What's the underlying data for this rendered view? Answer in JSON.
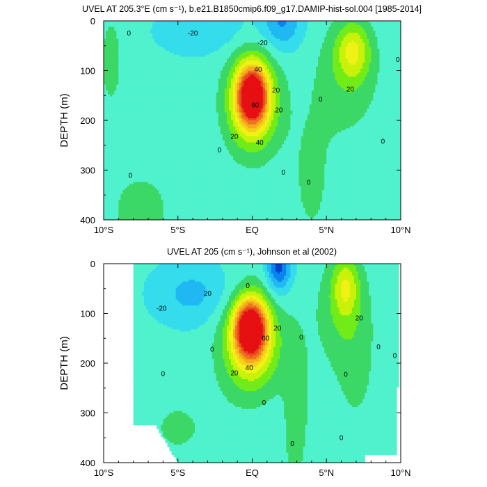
{
  "figure": {
    "title_top": "UVEL AT 205.3°E (cm s⁻¹), b.e21.B1850cmip6.f09_g17.DAMIP-hist-sol.004 [1985-2014]",
    "title_bottom": "UVEL AT 205 (cm s⁻¹), Johnson et al (2002)"
  },
  "colors": {
    "contour_levels": [
      -40,
      -30,
      -20,
      -10,
      0,
      10,
      20,
      30,
      40,
      50,
      60,
      70,
      80,
      90
    ],
    "palette": [
      "#0044cc",
      "#0a84f0",
      "#20b8f2",
      "#34dcec",
      "#4ff2cc",
      "#3cd867",
      "#72ec18",
      "#c8f20a",
      "#f0f216",
      "#f6d01a",
      "#f4aa1c",
      "#ee7420",
      "#e84a1e",
      "#e60f12",
      "#e60f12"
    ],
    "line": "#000000"
  },
  "chart_data": [
    {
      "type": "contour",
      "title": "UVEL AT 205.3°E (cm s⁻¹), b.e21.B1850cmip6.f09_g17.DAMIP-hist-sol.004 [1985-2014]",
      "xlabel": "",
      "ylabel": "DEPTH (m)",
      "xlim": [
        -10,
        10
      ],
      "ylim": [
        400,
        0
      ],
      "x_ticks": [
        -10,
        -5,
        0,
        5,
        10
      ],
      "x_tick_labels": [
        "10°S",
        "5°S",
        "EQ",
        "5°N",
        "10°N"
      ],
      "y_ticks": [
        0,
        100,
        200,
        300,
        400
      ],
      "y_tick_labels": [
        "0",
        "100",
        "200",
        "300",
        "400"
      ],
      "grid": false,
      "features": [
        {
          "kind": "EUC core",
          "lat": 0.0,
          "depth": 150,
          "max_value": 90
        },
        {
          "kind": "NECC",
          "lat": 6.8,
          "depth": 60,
          "max_value": 35
        },
        {
          "kind": "SEC surface minimum",
          "lat": 2.0,
          "depth": 5,
          "min_value": -30
        },
        {
          "kind": "deep eastward",
          "lat": -7.5,
          "depth": 350,
          "max_value": 5
        }
      ],
      "contour_labels": [
        {
          "text": "0",
          "lat": -8.3,
          "depth": 25
        },
        {
          "text": "-20",
          "lat": -4.0,
          "depth": 25
        },
        {
          "text": "-20",
          "lat": 0.7,
          "depth": 45
        },
        {
          "text": "40",
          "lat": 0.4,
          "depth": 98
        },
        {
          "text": "20",
          "lat": 1.6,
          "depth": 140
        },
        {
          "text": "60",
          "lat": 0.2,
          "depth": 170
        },
        {
          "text": "20",
          "lat": 1.8,
          "depth": 180
        },
        {
          "text": "20",
          "lat": -1.2,
          "depth": 233
        },
        {
          "text": "40",
          "lat": 0.5,
          "depth": 245
        },
        {
          "text": "0",
          "lat": -2.2,
          "depth": 260
        },
        {
          "text": "0",
          "lat": 2.1,
          "depth": 305
        },
        {
          "text": "20",
          "lat": 6.6,
          "depth": 138
        },
        {
          "text": "0",
          "lat": 4.6,
          "depth": 158
        },
        {
          "text": "0",
          "lat": 9.8,
          "depth": 78
        },
        {
          "text": "0",
          "lat": 8.8,
          "depth": 243
        },
        {
          "text": "0",
          "lat": 3.8,
          "depth": 325
        },
        {
          "text": "0",
          "lat": -8.2,
          "depth": 311
        }
      ]
    },
    {
      "type": "contour",
      "title": "UVEL AT 205 (cm s⁻¹), Johnson et al (2002)",
      "xlabel": "",
      "ylabel": "DEPTH (m)",
      "xlim": [
        -10,
        10
      ],
      "ylim": [
        400,
        0
      ],
      "x_ticks": [
        -10,
        -5,
        0,
        5,
        10
      ],
      "x_tick_labels": [
        "10°S",
        "5°S",
        "EQ",
        "5°N",
        "10°N"
      ],
      "y_ticks": [
        0,
        100,
        200,
        300,
        400
      ],
      "y_tick_labels": [
        "0",
        "100",
        "200",
        "300",
        "400"
      ],
      "grid": false,
      "data_lat_range": [
        -8,
        9.7
      ],
      "features": [
        {
          "kind": "EUC core",
          "lat": -0.1,
          "depth": 130,
          "max_value": 100
        },
        {
          "kind": "NECC",
          "lat": 6.3,
          "depth": 50,
          "max_value": 30
        },
        {
          "kind": "SEC surface minimum",
          "lat": 1.8,
          "depth": 10,
          "min_value": -40
        }
      ],
      "contour_labels": [
        {
          "text": "0",
          "lat": -0.3,
          "depth": 45
        },
        {
          "text": "-20",
          "lat": -6.1,
          "depth": 90
        },
        {
          "text": "20",
          "lat": -3.0,
          "depth": 60
        },
        {
          "text": "20",
          "lat": 1.7,
          "depth": 130
        },
        {
          "text": "60",
          "lat": 0.9,
          "depth": 150
        },
        {
          "text": "20",
          "lat": -1.2,
          "depth": 220
        },
        {
          "text": "40",
          "lat": -0.2,
          "depth": 210
        },
        {
          "text": "0",
          "lat": 3.3,
          "depth": 148
        },
        {
          "text": "20",
          "lat": 7.2,
          "depth": 110
        },
        {
          "text": "0",
          "lat": -2.7,
          "depth": 173
        },
        {
          "text": "0",
          "lat": -6.0,
          "depth": 222
        },
        {
          "text": "0",
          "lat": 6.3,
          "depth": 223
        },
        {
          "text": "0",
          "lat": 8.5,
          "depth": 168
        },
        {
          "text": "0",
          "lat": 9.6,
          "depth": 185
        },
        {
          "text": "0",
          "lat": 0.8,
          "depth": 280
        },
        {
          "text": "0",
          "lat": 6.0,
          "depth": 350
        },
        {
          "text": "0",
          "lat": 2.7,
          "depth": 362
        }
      ]
    }
  ]
}
